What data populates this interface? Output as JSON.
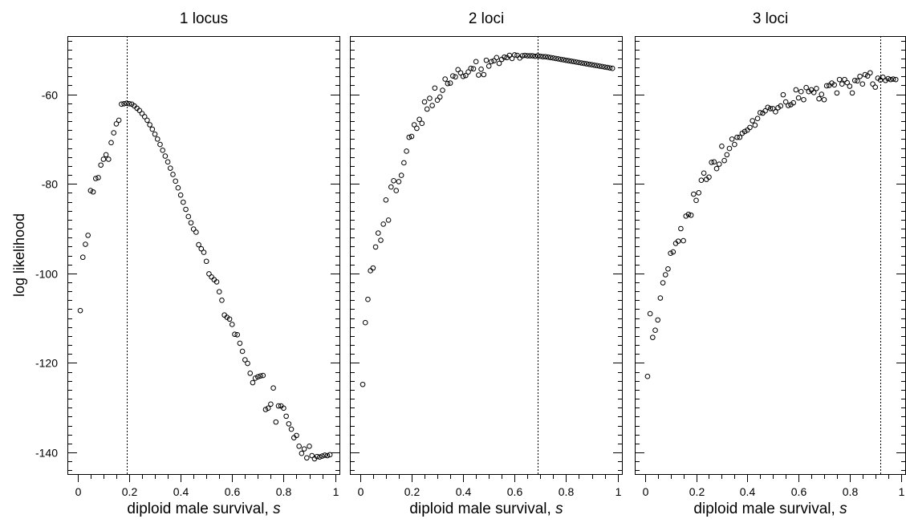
{
  "figure": {
    "ylabel": "log likelihood"
  },
  "chart_data": [
    {
      "type": "scatter",
      "title": "1 locus",
      "xlabel": "diploid male survival, ",
      "xlabel_italic": "s",
      "ylabel": "log likelihood",
      "xlim": [
        -0.04,
        1.02
      ],
      "ylim": [
        -145,
        -47
      ],
      "xticks": [
        0,
        0.2,
        0.4,
        0.6,
        0.8,
        1
      ],
      "xtick_labels": [
        "0",
        "0.2",
        "0.4",
        "0.6",
        "0.8",
        "1"
      ],
      "yticks": [
        -140,
        -120,
        -100,
        -80,
        -60
      ],
      "ytick_labels": [
        "-140",
        "-120",
        "-100",
        "-80",
        "-60"
      ],
      "show_yticklabels": true,
      "vline": 0.19,
      "marker": "open-circle",
      "x": [
        0.01,
        0.02,
        0.03,
        0.04,
        0.05,
        0.06,
        0.07,
        0.08,
        0.09,
        0.1,
        0.11,
        0.12,
        0.13,
        0.14,
        0.15,
        0.16,
        0.17,
        0.18,
        0.19,
        0.2,
        0.21,
        0.22,
        0.23,
        0.24,
        0.25,
        0.26,
        0.27,
        0.28,
        0.29,
        0.3,
        0.31,
        0.32,
        0.33,
        0.34,
        0.35,
        0.36,
        0.37,
        0.38,
        0.39,
        0.4,
        0.41,
        0.42,
        0.43,
        0.44,
        0.45,
        0.46,
        0.47,
        0.48,
        0.49,
        0.5,
        0.51,
        0.52,
        0.53,
        0.54,
        0.55,
        0.56,
        0.57,
        0.58,
        0.59,
        0.6,
        0.61,
        0.62,
        0.63,
        0.64,
        0.65,
        0.66,
        0.67,
        0.68,
        0.69,
        0.7,
        0.71,
        0.72,
        0.73,
        0.74,
        0.75,
        0.76,
        0.77,
        0.78,
        0.79,
        0.8,
        0.81,
        0.82,
        0.83,
        0.84,
        0.85,
        0.86,
        0.87,
        0.88,
        0.89,
        0.9,
        0.91,
        0.92,
        0.93,
        0.94,
        0.95,
        0.96,
        0.97,
        0.98
      ],
      "y": [
        -108.3,
        -96.4,
        -93.5,
        -91.5,
        -81.5,
        -81.8,
        -78.8,
        -78.6,
        -75.8,
        -74.5,
        -73.5,
        -74.5,
        -70.8,
        -68.6,
        -66.6,
        -65.8,
        -62.2,
        -62.1,
        -62.0,
        -62.1,
        -62.2,
        -62.6,
        -63.1,
        -63.6,
        -64.3,
        -65.0,
        -65.8,
        -66.8,
        -67.8,
        -68.9,
        -70.0,
        -71.2,
        -72.5,
        -73.8,
        -75.1,
        -76.5,
        -77.9,
        -79.4,
        -80.9,
        -82.5,
        -84.1,
        -85.7,
        -87.3,
        -88.7,
        -90.1,
        -90.8,
        -93.6,
        -94.5,
        -95.3,
        -97.3,
        -100.1,
        -100.8,
        -101.4,
        -101.9,
        -104.1,
        -106.0,
        -109.3,
        -109.8,
        -110.2,
        -111.4,
        -113.6,
        -113.7,
        -115.6,
        -117.4,
        -119.3,
        -120.1,
        -122.3,
        -124.4,
        -123.4,
        -123.1,
        -122.9,
        -122.8,
        -130.4,
        -130.1,
        -129.2,
        -125.6,
        -133.2,
        -129.6,
        -129.6,
        -130.1,
        -131.9,
        -133.6,
        -134.8,
        -136.7,
        -136.2,
        -138.6,
        -140.2,
        -139.2,
        -141.2,
        -138.6,
        -140.7,
        -141.4,
        -140.9,
        -141.0,
        -140.8,
        -140.6,
        -140.7,
        -140.5
      ]
    },
    {
      "type": "scatter",
      "title": "2 loci",
      "xlabel": "diploid male survival, ",
      "xlabel_italic": "s",
      "ylabel": "log likelihood",
      "xlim": [
        -0.04,
        1.02
      ],
      "ylim": [
        -145,
        -47
      ],
      "xticks": [
        0,
        0.2,
        0.4,
        0.6,
        0.8,
        1
      ],
      "xtick_labels": [
        "0",
        "0.2",
        "0.4",
        "0.6",
        "0.8",
        "1"
      ],
      "yticks": [
        -140,
        -120,
        -100,
        -80,
        -60
      ],
      "ytick_labels": [
        "-140",
        "-120",
        "-100",
        "-80",
        "-60"
      ],
      "show_yticklabels": false,
      "vline": 0.69,
      "marker": "open-circle",
      "x": [
        0.01,
        0.02,
        0.03,
        0.04,
        0.05,
        0.06,
        0.07,
        0.08,
        0.09,
        0.1,
        0.11,
        0.12,
        0.13,
        0.14,
        0.15,
        0.16,
        0.17,
        0.18,
        0.19,
        0.2,
        0.21,
        0.22,
        0.23,
        0.24,
        0.25,
        0.26,
        0.27,
        0.28,
        0.29,
        0.3,
        0.31,
        0.32,
        0.33,
        0.34,
        0.35,
        0.36,
        0.37,
        0.38,
        0.39,
        0.4,
        0.41,
        0.42,
        0.43,
        0.44,
        0.45,
        0.46,
        0.47,
        0.48,
        0.49,
        0.5,
        0.51,
        0.52,
        0.53,
        0.54,
        0.55,
        0.56,
        0.57,
        0.58,
        0.59,
        0.6,
        0.61,
        0.62,
        0.63,
        0.64,
        0.65,
        0.66,
        0.67,
        0.68,
        0.69,
        0.7,
        0.71,
        0.72,
        0.73,
        0.74,
        0.75,
        0.76,
        0.77,
        0.78,
        0.79,
        0.8,
        0.81,
        0.82,
        0.83,
        0.84,
        0.85,
        0.86,
        0.87,
        0.88,
        0.89,
        0.9,
        0.91,
        0.92,
        0.93,
        0.94,
        0.95,
        0.96,
        0.97,
        0.98
      ],
      "y": [
        -124.8,
        -111.0,
        -105.8,
        -99.4,
        -98.8,
        -94.1,
        -91.0,
        -92.6,
        -89.0,
        -83.6,
        -88.1,
        -80.7,
        -79.3,
        -81.5,
        -79.5,
        -78.1,
        -75.3,
        -72.7,
        -69.6,
        -69.4,
        -66.8,
        -67.6,
        -65.6,
        -66.5,
        -61.7,
        -63.3,
        -60.9,
        -62.5,
        -58.6,
        -61.3,
        -60.6,
        -59.1,
        -56.6,
        -57.6,
        -57.5,
        -55.9,
        -56.1,
        -54.5,
        -55.2,
        -56.0,
        -55.8,
        -55.0,
        -54.2,
        -54.3,
        -52.7,
        -55.7,
        -54.4,
        -55.6,
        -52.4,
        -53.7,
        -52.7,
        -52.5,
        -51.8,
        -53.1,
        -52.2,
        -51.7,
        -51.8,
        -51.3,
        -52.0,
        -51.2,
        -51.3,
        -51.9,
        -51.4,
        -51.3,
        -51.4,
        -51.4,
        -51.4,
        -51.5,
        -51.4,
        -51.5,
        -51.6,
        -51.6,
        -51.7,
        -51.8,
        -51.9,
        -52.0,
        -52.1,
        -52.2,
        -52.3,
        -52.4,
        -52.5,
        -52.6,
        -52.7,
        -52.8,
        -52.9,
        -53.0,
        -53.1,
        -53.2,
        -53.3,
        -53.4,
        -53.5,
        -53.6,
        -53.7,
        -53.8,
        -53.9,
        -54.0,
        -54.1,
        -54.2
      ]
    },
    {
      "type": "scatter",
      "title": "3 loci",
      "xlabel": "diploid male survival, ",
      "xlabel_italic": "s",
      "ylabel": "log likelihood",
      "xlim": [
        -0.04,
        1.02
      ],
      "ylim": [
        -145,
        -47
      ],
      "xticks": [
        0,
        0.2,
        0.4,
        0.6,
        0.8,
        1
      ],
      "xtick_labels": [
        "0",
        "0.2",
        "0.4",
        "0.6",
        "0.8",
        "1"
      ],
      "yticks": [
        -140,
        -120,
        -100,
        -80,
        -60
      ],
      "ytick_labels": [
        "-140",
        "-120",
        "-100",
        "-80",
        "-60"
      ],
      "show_yticklabels": false,
      "vline": 0.92,
      "marker": "open-circle",
      "x": [
        0.01,
        0.02,
        0.03,
        0.04,
        0.05,
        0.06,
        0.07,
        0.08,
        0.09,
        0.1,
        0.11,
        0.12,
        0.13,
        0.14,
        0.15,
        0.16,
        0.17,
        0.18,
        0.19,
        0.2,
        0.21,
        0.22,
        0.23,
        0.24,
        0.25,
        0.26,
        0.27,
        0.28,
        0.29,
        0.3,
        0.31,
        0.32,
        0.33,
        0.34,
        0.35,
        0.36,
        0.37,
        0.38,
        0.39,
        0.4,
        0.41,
        0.42,
        0.43,
        0.44,
        0.45,
        0.46,
        0.47,
        0.48,
        0.49,
        0.5,
        0.51,
        0.52,
        0.53,
        0.54,
        0.55,
        0.56,
        0.57,
        0.58,
        0.59,
        0.6,
        0.61,
        0.62,
        0.63,
        0.64,
        0.65,
        0.66,
        0.67,
        0.68,
        0.69,
        0.7,
        0.71,
        0.72,
        0.73,
        0.74,
        0.75,
        0.76,
        0.77,
        0.78,
        0.79,
        0.8,
        0.81,
        0.82,
        0.83,
        0.84,
        0.85,
        0.86,
        0.87,
        0.88,
        0.89,
        0.9,
        0.91,
        0.92,
        0.93,
        0.94,
        0.95,
        0.96,
        0.97,
        0.98
      ],
      "y": [
        -123.0,
        -109.0,
        -114.3,
        -112.7,
        -110.4,
        -105.5,
        -102.1,
        -100.3,
        -99.0,
        -95.5,
        -95.2,
        -93.3,
        -92.8,
        -90.0,
        -92.7,
        -87.2,
        -86.8,
        -87.0,
        -82.3,
        -83.7,
        -82.0,
        -79.2,
        -77.6,
        -79.0,
        -78.5,
        -75.2,
        -75.1,
        -76.6,
        -75.6,
        -71.6,
        -74.8,
        -73.5,
        -72.1,
        -70.0,
        -71.2,
        -69.6,
        -69.6,
        -68.7,
        -68.3,
        -68.0,
        -67.4,
        -65.9,
        -66.9,
        -65.4,
        -64.1,
        -64.2,
        -63.7,
        -62.9,
        -63.2,
        -63.2,
        -63.9,
        -63.0,
        -62.6,
        -60.1,
        -61.7,
        -62.5,
        -62.3,
        -61.9,
        -59.0,
        -60.8,
        -59.4,
        -61.2,
        -58.5,
        -59.4,
        -59.0,
        -59.6,
        -58.7,
        -61.0,
        -60.0,
        -61.2,
        -58.1,
        -58.0,
        -57.5,
        -57.9,
        -59.7,
        -56.7,
        -57.7,
        -56.7,
        -57.4,
        -58.2,
        -59.7,
        -56.9,
        -57.0,
        -56.0,
        -57.7,
        -55.6,
        -55.9,
        -55.2,
        -57.7,
        -58.4,
        -56.4,
        -56.8,
        -56.2,
        -56.9,
        -56.5,
        -56.7,
        -56.6,
        -56.7
      ]
    }
  ]
}
